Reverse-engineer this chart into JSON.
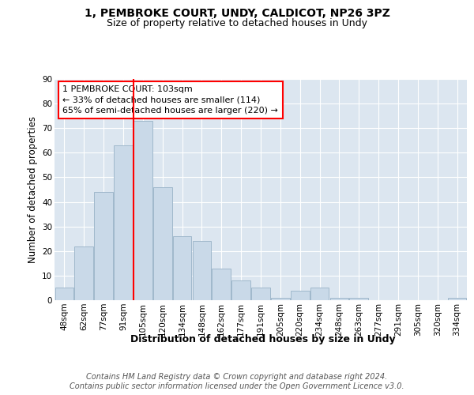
{
  "title": "1, PEMBROKE COURT, UNDY, CALDICOT, NP26 3PZ",
  "subtitle": "Size of property relative to detached houses in Undy",
  "xlabel": "Distribution of detached houses by size in Undy",
  "ylabel": "Number of detached properties",
  "bar_labels": [
    "48sqm",
    "62sqm",
    "77sqm",
    "91sqm",
    "105sqm",
    "120sqm",
    "134sqm",
    "148sqm",
    "162sqm",
    "177sqm",
    "191sqm",
    "205sqm",
    "220sqm",
    "234sqm",
    "248sqm",
    "263sqm",
    "277sqm",
    "291sqm",
    "305sqm",
    "320sqm",
    "334sqm"
  ],
  "bar_values": [
    5,
    22,
    44,
    63,
    73,
    46,
    26,
    24,
    13,
    8,
    5,
    1,
    4,
    5,
    1,
    1,
    0,
    0,
    0,
    0,
    1
  ],
  "bar_color": "#c9d9e8",
  "bar_edge_color": "#a0b8cc",
  "vline_color": "red",
  "vline_pos": 3.52,
  "annotation_text": "1 PEMBROKE COURT: 103sqm\n← 33% of detached houses are smaller (114)\n65% of semi-detached houses are larger (220) →",
  "annotation_box_color": "white",
  "annotation_box_edge": "red",
  "ylim": [
    0,
    90
  ],
  "yticks": [
    0,
    10,
    20,
    30,
    40,
    50,
    60,
    70,
    80,
    90
  ],
  "plot_bg_color": "#dce6f0",
  "footer_text": "Contains HM Land Registry data © Crown copyright and database right 2024.\nContains public sector information licensed under the Open Government Licence v3.0.",
  "title_fontsize": 10,
  "subtitle_fontsize": 9,
  "xlabel_fontsize": 9,
  "ylabel_fontsize": 8.5,
  "tick_fontsize": 7.5,
  "footer_fontsize": 7,
  "annotation_fontsize": 8
}
